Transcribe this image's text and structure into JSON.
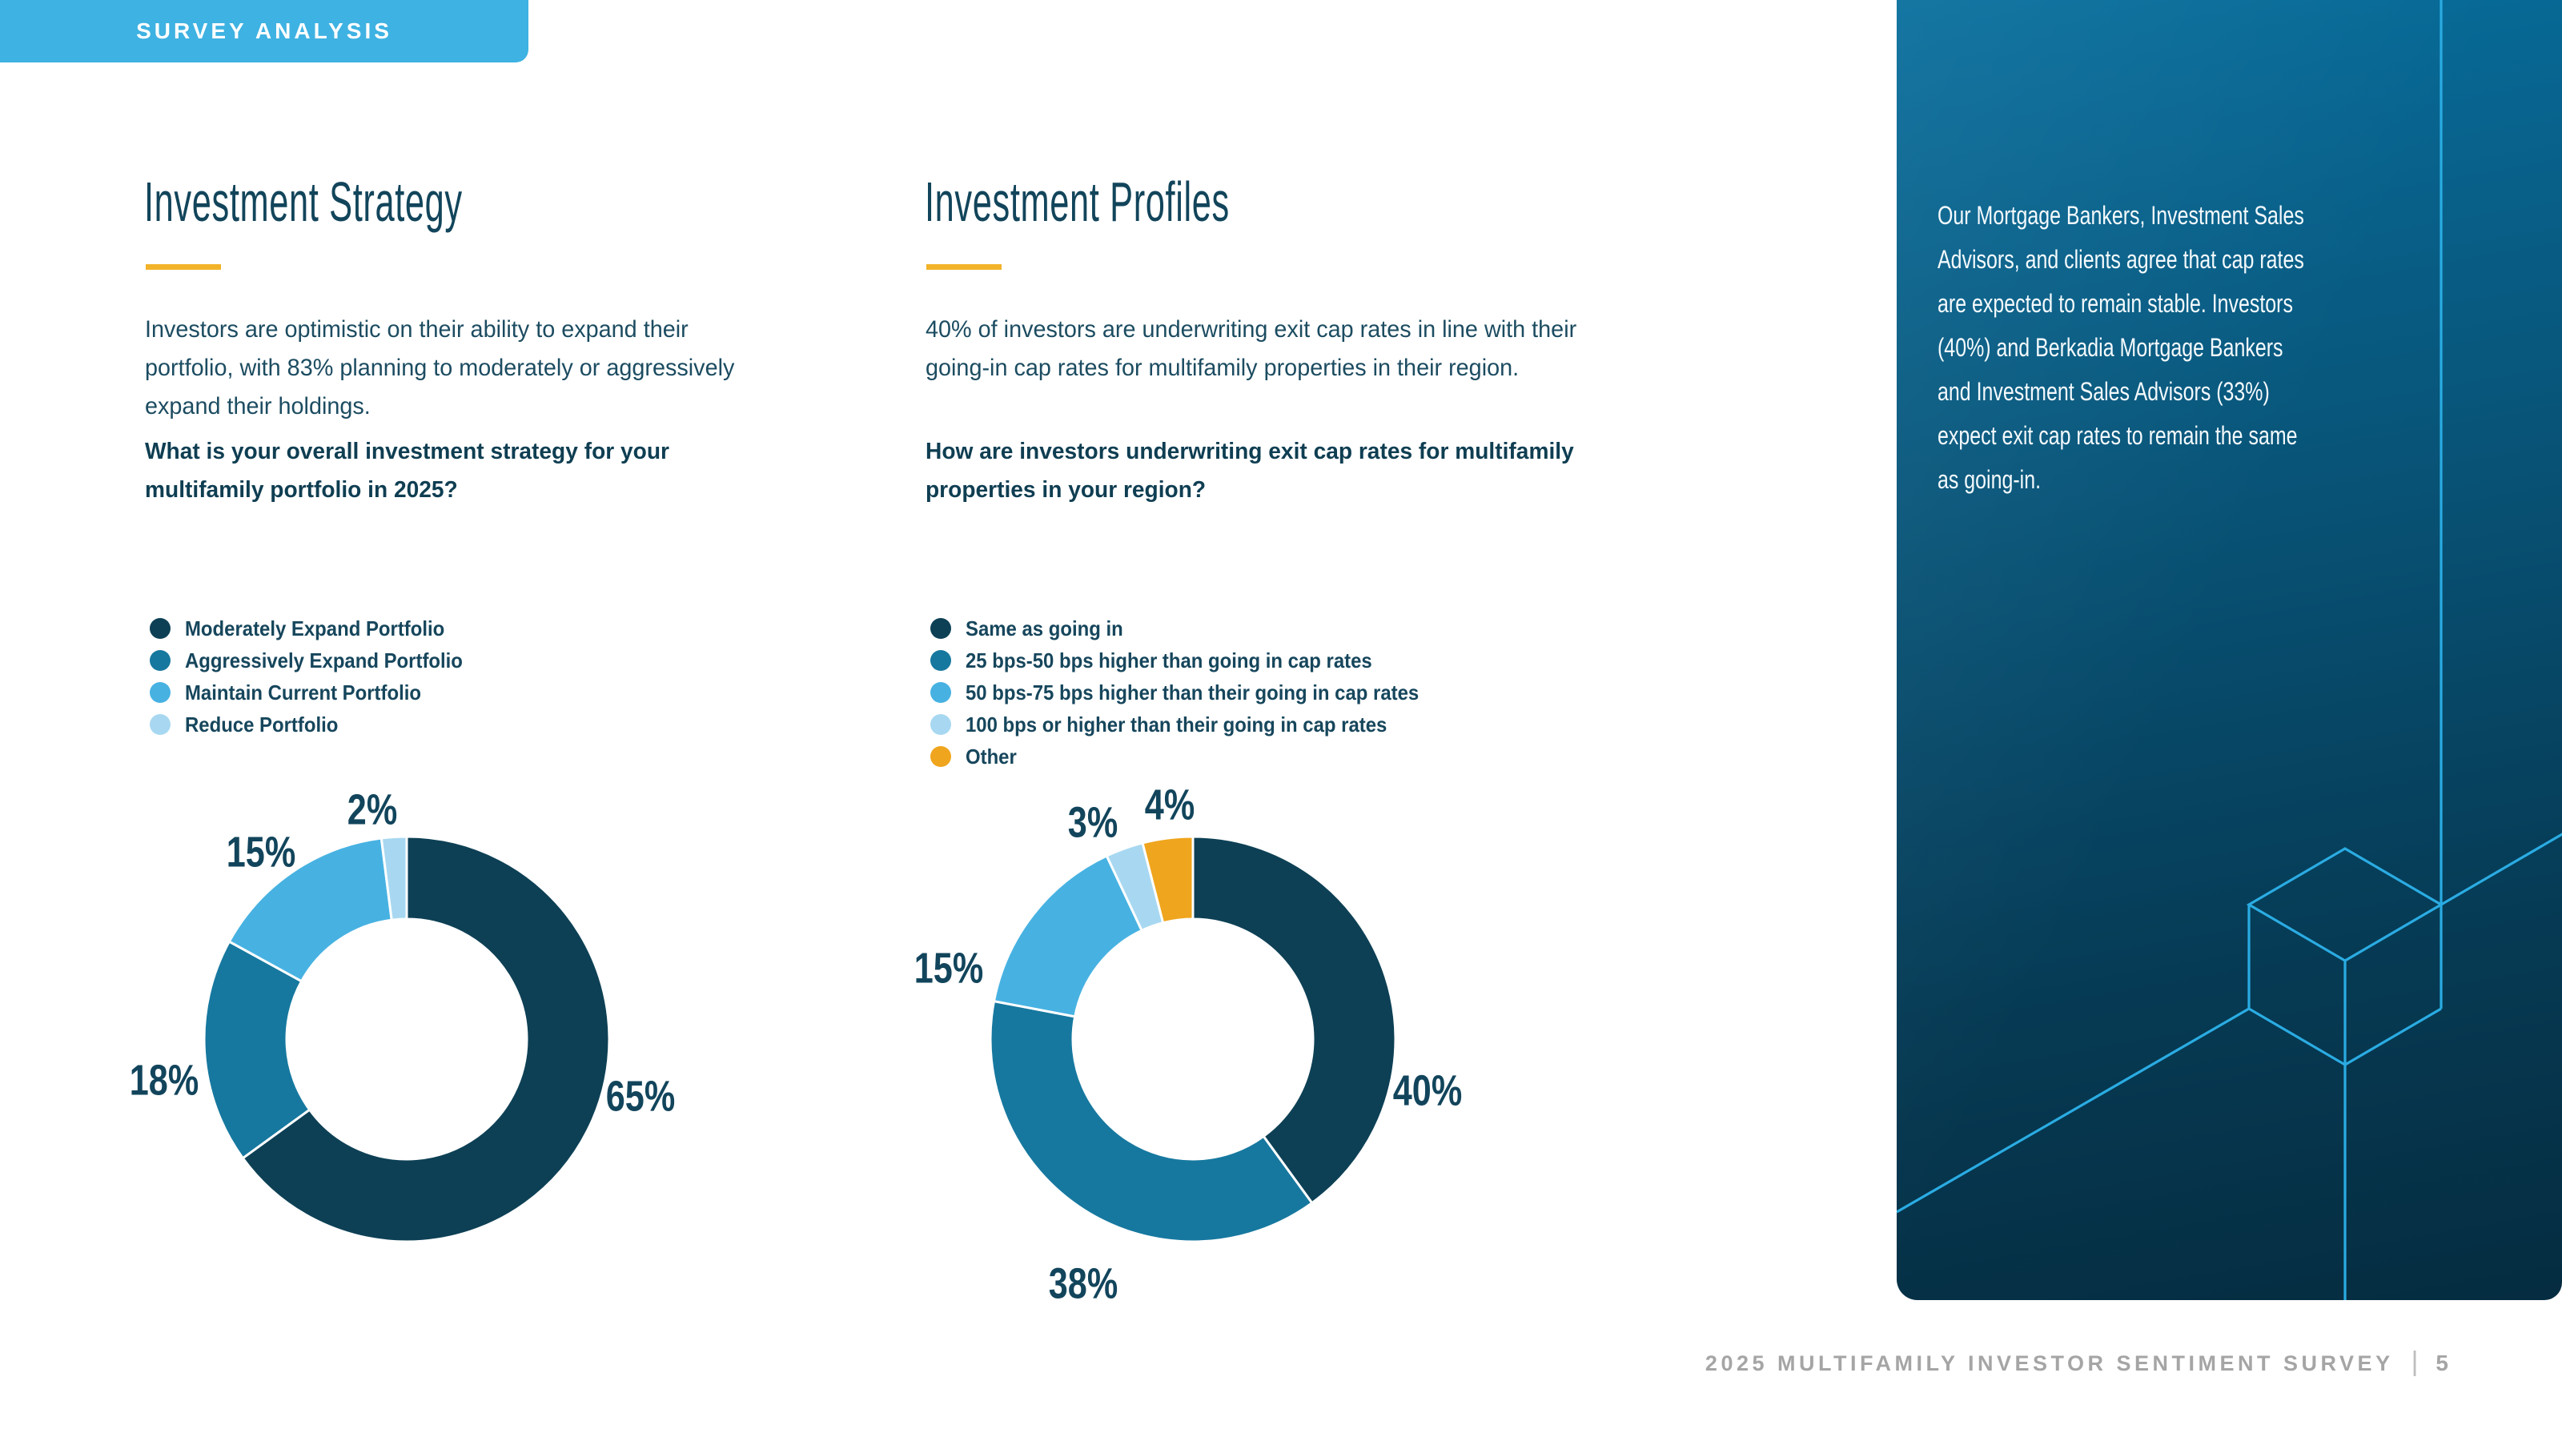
{
  "badge": {
    "label": "SURVEY ANALYSIS"
  },
  "sections": [
    {
      "title": "Investment Strategy",
      "intro": "Investors are optimistic on their ability to expand their\nportfolio, with 83% planning to moderately or aggressively\nexpand their holdings.",
      "question": "What is your overall investment strategy for your\nmultifamily portfolio in 2025?"
    },
    {
      "title": "Investment Profiles",
      "intro": "40% of investors are underwriting exit cap rates in line with their\ngoing-in cap rates for multifamily properties in their region.",
      "question": "How are investors underwriting exit cap rates for multifamily\nproperties in your region?"
    }
  ],
  "chart_data": [
    {
      "type": "pie",
      "subtype": "donut",
      "title": "What is your overall investment strategy for your multifamily portfolio in 2025?",
      "categories": [
        "Moderately Expand Portfolio",
        "Aggressively Expand Portfolio",
        "Maintain Current Portfolio",
        "Reduce Portfolio"
      ],
      "values": [
        65,
        18,
        15,
        2
      ],
      "labels": [
        "65%",
        "18%",
        "15%",
        "2%"
      ],
      "colors": [
        "#0D4055",
        "#16789F",
        "#47B2E2",
        "#A8D8F1"
      ],
      "start_angle": "top",
      "direction": "clockwise",
      "legend_position": "above-left"
    },
    {
      "type": "pie",
      "subtype": "donut",
      "title": "How are investors underwriting exit cap rates for multifamily properties in your region?",
      "categories": [
        "Same as going in",
        "25 bps-50 bps higher than going in cap rates",
        "50 bps-75 bps higher than their going in cap rates",
        "100 bps or higher than their going in cap rates",
        "Other"
      ],
      "values": [
        40,
        38,
        15,
        3,
        4
      ],
      "labels": [
        "40%",
        "38%",
        "15%",
        "3%",
        "4%"
      ],
      "colors": [
        "#0D4055",
        "#16789F",
        "#47B2E2",
        "#A8D8F1",
        "#EFA51D"
      ],
      "start_angle": "top",
      "direction": "clockwise",
      "legend_position": "above-left"
    }
  ],
  "sidebar": {
    "text": "Our Mortgage Bankers, Investment Sales\nAdvisors, and clients agree that cap rates\nare expected to remain stable. Investors\n(40%) and Berkadia Mortgage Bankers\nand Investment Sales Advisors (33%)\nexpect exit cap rates to remain the same\nas going-in."
  },
  "footer": {
    "label": "2025 MULTIFAMILY INVESTOR SENTIMENT SURVEY",
    "separator": "|",
    "page_number": "5"
  },
  "colors": {
    "badge_background": "#3EB2E2",
    "heading_text": "#12455B",
    "body_text": "#1C4C61",
    "gold_rule": "#F2B32A",
    "percent_label": "#12455C",
    "panel_gradient_top": "#076E9D",
    "panel_gradient_bottom": "#052C40",
    "panel_line_cyan": "#2AACE3",
    "panel_text": "#F4FAFD",
    "footer_gray": "#A5A5A5",
    "slice_dark_teal": "#0D4055",
    "slice_medium_blue": "#16789F",
    "slice_light_blue": "#47B2E2",
    "slice_pale_blue": "#A8D8F1",
    "slice_orange": "#EFA51D"
  }
}
